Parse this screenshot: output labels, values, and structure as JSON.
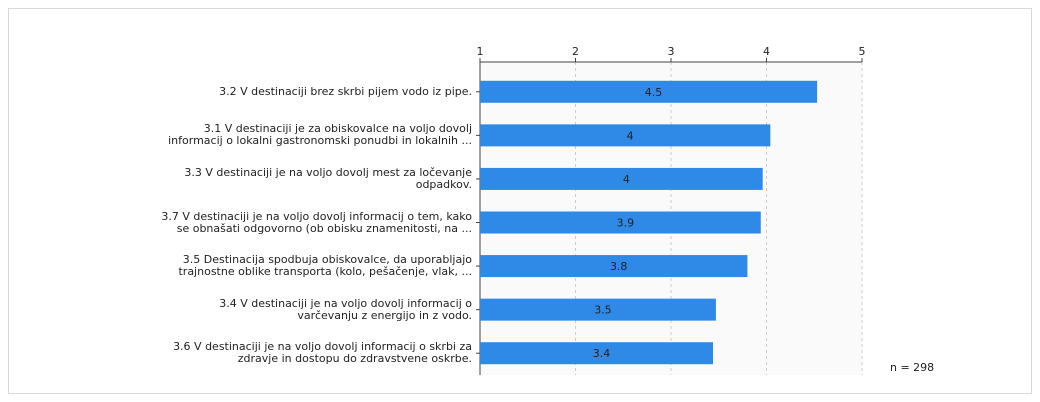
{
  "chart_data": {
    "type": "bar",
    "orientation": "horizontal",
    "categories": [
      "3.2 V destinaciji brez skrbi pijem vodo iz pipe.",
      "3.1 V destinaciji je za obiskovalce na voljo dovolj\ninformacij o lokalni gastronomski ponudbi in lokalnih ...",
      "3.3 V destinaciji je na voljo dovolj mest za ločevanje\nodpadkov.",
      "3.7 V destinaciji je na voljo dovolj informacij o tem, kako\nse obnašati odgovorno (ob obisku znamenitosti, na ...",
      "3.5 Destinacija spodbuja obiskovalce, da uporabljajo\ntrajnostne oblike transporta (kolo, pešačenje, vlak, ...",
      "3.4 V destinaciji je na voljo dovolj informacij o\nvarčevanju z energijo in z vodo.",
      "3.6 V destinaciji je na voljo dovolj informacij o skrbi za\nzdravje in dostopu do zdravstvene oskrbe."
    ],
    "values": [
      4.53,
      4.04,
      3.96,
      3.94,
      3.8,
      3.47,
      3.44
    ],
    "value_labels": [
      "4.5",
      "4",
      "4",
      "3.9",
      "3.8",
      "3.5",
      "3.4"
    ],
    "color": "#2e8ae6",
    "xlim": [
      1,
      5
    ],
    "xticks": [
      1,
      2,
      3,
      4,
      5
    ],
    "grid": true,
    "note": "n = 298"
  }
}
